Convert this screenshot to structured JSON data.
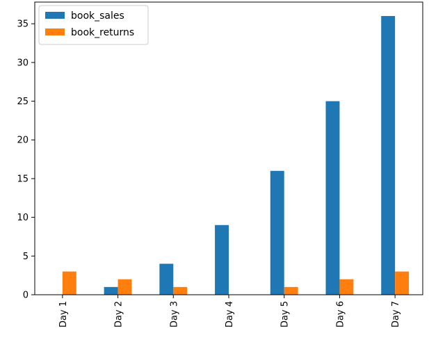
{
  "chart_data": {
    "type": "bar",
    "categories": [
      "Day 1",
      "Day 2",
      "Day 3",
      "Day 4",
      "Day 5",
      "Day 6",
      "Day 7"
    ],
    "series": [
      {
        "name": "book_sales",
        "values": [
          0,
          1,
          4,
          9,
          16,
          25,
          36
        ],
        "color": "#1f77b4"
      },
      {
        "name": "book_returns",
        "values": [
          3,
          2,
          1,
          0,
          1,
          2,
          3
        ],
        "color": "#ff7f0e"
      }
    ],
    "yticks": [
      0,
      5,
      10,
      15,
      20,
      25,
      30,
      35
    ],
    "ylim": [
      0,
      37.8
    ],
    "grid": false,
    "legend_position": "top-left"
  }
}
